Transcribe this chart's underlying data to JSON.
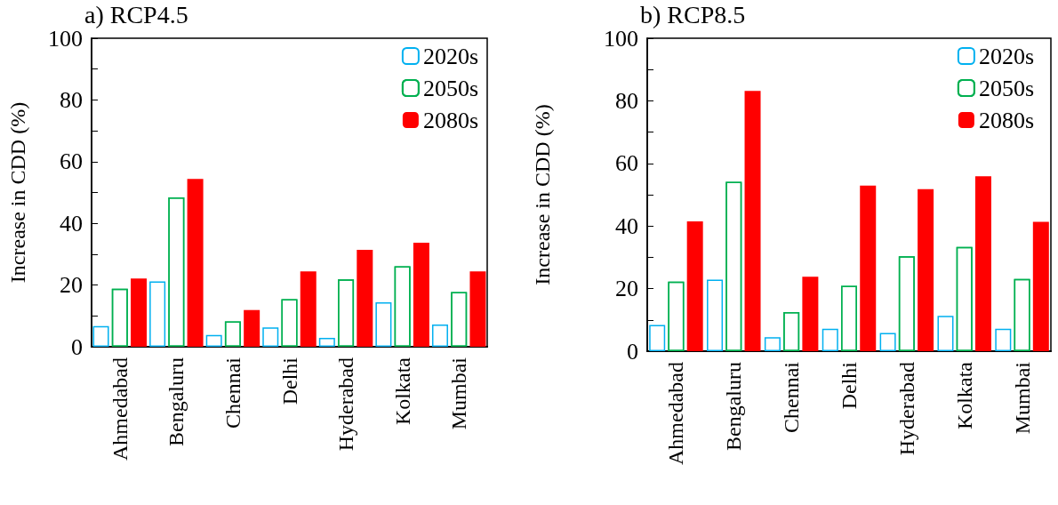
{
  "chart_data": [
    {
      "type": "bar",
      "title": "a) RCP4.5",
      "ylabel": "Increase in CDD (%)",
      "categories": [
        "Ahmedabad",
        "Bengaluru",
        "Chennai",
        "Delhi",
        "Hyderabad",
        "Kolkata",
        "Mumbai"
      ],
      "series": [
        {
          "name": "2020s",
          "color": "#00b0f0",
          "values": [
            6.7,
            21.2,
            3.8,
            6.3,
            2.9,
            14.4,
            7.2
          ]
        },
        {
          "name": "2050s",
          "color": "#00b050",
          "values": [
            18.8,
            48.4,
            8.2,
            15.4,
            21.8,
            26.1,
            17.7
          ]
        },
        {
          "name": "2080s",
          "color": "#ff0000",
          "values": [
            22.1,
            54.4,
            11.9,
            24.4,
            31.4,
            33.7,
            24.4
          ]
        }
      ],
      "ylim": [
        0,
        100
      ],
      "yticks": [
        0,
        {
          "value": 10,
          "label": null
        },
        20,
        {
          "value": 30,
          "label": null
        },
        40,
        {
          "value": 50,
          "label": null
        },
        60,
        {
          "value": 70,
          "label": null
        },
        80,
        {
          "value": 90,
          "label": null
        },
        100
      ],
      "legend": "top right",
      "grid": false
    },
    {
      "type": "bar",
      "title": "b) RCP8.5",
      "ylabel": "Increase in CDD (%)",
      "categories": [
        "Ahmedabad",
        "Bengaluru",
        "Chennai",
        "Delhi",
        "Hyderabad",
        "Kolkata",
        "Mumbai"
      ],
      "series": [
        {
          "name": "2020s",
          "color": "#00b0f0",
          "values": [
            8.4,
            22.9,
            4.5,
            7.2,
            5.8,
            11.3,
            7.2
          ]
        },
        {
          "name": "2050s",
          "color": "#00b050",
          "values": [
            22.2,
            54.1,
            12.5,
            20.9,
            30.3,
            33.3,
            23.1
          ]
        },
        {
          "name": "2080s",
          "color": "#ff0000",
          "values": [
            41.5,
            83.2,
            23.8,
            52.9,
            51.8,
            55.9,
            41.3
          ]
        }
      ],
      "ylim": [
        0,
        100
      ],
      "yticks": [
        0,
        {
          "value": 10,
          "label": null
        },
        20,
        {
          "value": 30,
          "label": null
        },
        40,
        {
          "value": 50,
          "label": null
        },
        60,
        {
          "value": 70,
          "label": null
        },
        80,
        {
          "value": 90,
          "label": null
        },
        100
      ],
      "legend": "top right",
      "grid": false
    }
  ]
}
